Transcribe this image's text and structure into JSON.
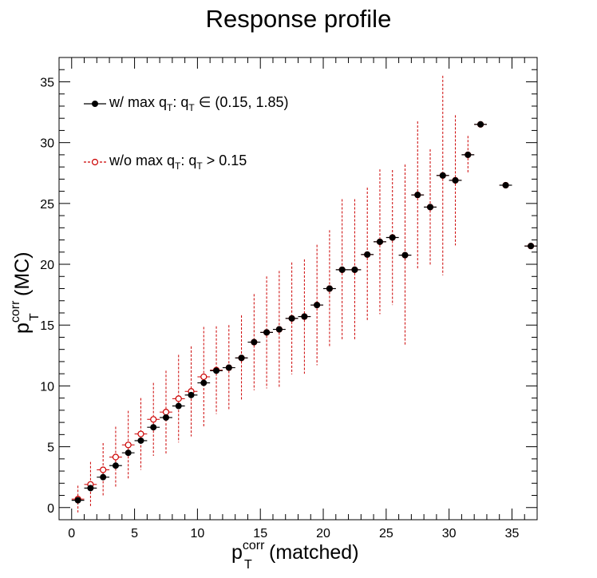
{
  "chart_data": {
    "type": "scatter",
    "title": "Response profile",
    "xlabel": {
      "base": "p",
      "sup": "corr",
      "sub": "T",
      "tail": "(matched)"
    },
    "ylabel": {
      "base": "p",
      "sup": "corr",
      "sub": "T",
      "tail": "(MC)"
    },
    "xlim": [
      -1,
      37
    ],
    "ylim": [
      -1,
      37
    ],
    "x_ticks": [
      0,
      5,
      10,
      15,
      20,
      25,
      30,
      35
    ],
    "y_ticks": [
      0,
      5,
      10,
      15,
      20,
      25,
      30,
      35
    ],
    "grid": false,
    "legend_position": "top-left",
    "series": [
      {
        "name": "w/ max q_T: q_T ∈ (0.15, 1.85)",
        "legend": {
          "pre": "w/ max q",
          "sub1": "T",
          "mid": ": q",
          "sub2": "T",
          "post": " ∈ (0.15, 1.85)"
        },
        "color": "#000000",
        "marker": "filled-circle",
        "x": [
          0.5,
          1.5,
          2.5,
          3.5,
          4.5,
          5.5,
          6.5,
          7.5,
          8.5,
          9.5,
          10.5,
          11.5,
          12.5,
          13.5,
          14.5,
          15.5,
          16.5,
          17.5,
          18.5,
          19.5,
          20.5,
          21.5,
          22.5,
          23.5,
          24.5,
          25.5,
          26.5,
          27.5,
          28.5,
          29.5,
          30.5,
          31.5,
          32.5,
          34.5,
          36.5
        ],
        "y": [
          0.6,
          1.6,
          2.5,
          3.45,
          4.5,
          5.5,
          6.6,
          7.4,
          8.35,
          9.25,
          10.25,
          11.25,
          11.5,
          12.3,
          13.6,
          14.4,
          14.65,
          15.55,
          15.7,
          16.65,
          18.0,
          19.55,
          19.55,
          20.8,
          21.85,
          22.2,
          20.75,
          25.7,
          24.7,
          27.3,
          26.9,
          29.0,
          31.5,
          26.5,
          21.5
        ]
      },
      {
        "name": "w/o max q_T: q_T > 0.15",
        "legend": {
          "pre": "w/o max q",
          "sub1": "T",
          "mid": ": q",
          "sub2": "T",
          "post": " > 0.15"
        },
        "color": "#cc0000",
        "marker": "open-circle",
        "x": [
          0.5,
          1.5,
          2.5,
          3.5,
          4.5,
          5.5,
          6.5,
          7.5,
          8.5,
          9.5,
          10.5,
          11.5,
          12.5,
          13.5,
          14.5,
          15.5,
          16.5,
          17.5,
          18.5,
          19.5,
          20.5,
          21.5,
          22.5,
          23.5,
          24.5,
          25.5,
          26.5,
          27.5,
          28.5,
          29.5,
          30.5,
          31.5,
          32.5,
          34.5,
          36.5
        ],
        "y": [
          0.7,
          1.9,
          3.1,
          4.15,
          5.15,
          6.05,
          7.25,
          7.85,
          8.95,
          9.55,
          10.75,
          11.3,
          11.5,
          12.3,
          13.6,
          14.4,
          14.65,
          15.55,
          15.7,
          16.65,
          18.0,
          19.55,
          19.55,
          20.8,
          21.85,
          22.2,
          20.75,
          25.7,
          24.7,
          27.3,
          26.9,
          29.0,
          31.5,
          26.5,
          21.5
        ],
        "yerr": [
          1.1,
          1.85,
          2.2,
          2.5,
          2.8,
          2.95,
          3.0,
          3.4,
          3.6,
          3.7,
          4.1,
          3.6,
          3.5,
          3.5,
          3.95,
          4.6,
          4.8,
          4.6,
          4.7,
          4.95,
          4.8,
          5.8,
          5.8,
          5.5,
          5.95,
          5.55,
          7.45,
          6.05,
          4.75,
          8.2,
          5.35,
          1.55,
          0,
          0,
          0
        ]
      }
    ]
  }
}
